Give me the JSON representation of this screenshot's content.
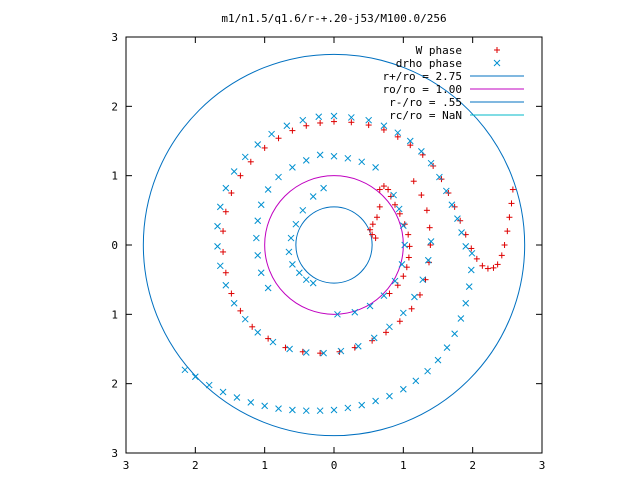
{
  "chart_data": {
    "type": "scatter",
    "title": "m1/n1.5/q1.6/r-+.20-j53/M100.0/256",
    "xlabel": "",
    "ylabel": "",
    "xlim": [
      -3,
      3
    ],
    "ylim": [
      -3,
      3
    ],
    "x_ticks": [
      -3,
      -2,
      -1,
      0,
      1,
      2,
      3
    ],
    "y_ticks": [
      -3,
      -2,
      -1,
      0,
      1,
      2,
      3
    ],
    "x_tick_labels": [
      "3",
      "2",
      "1",
      "0",
      "1",
      "2",
      "3"
    ],
    "y_tick_labels": [
      "3",
      "2",
      "1",
      "0",
      "1",
      "2",
      "3"
    ],
    "legend": "top-right",
    "series": [
      {
        "name": "W phase",
        "marker": "plus",
        "color": "#dd0000",
        "points": [
          [
            0.6,
            0.1
          ],
          [
            0.55,
            0.15
          ],
          [
            0.52,
            0.22
          ],
          [
            0.56,
            0.3
          ],
          [
            0.62,
            0.4
          ],
          [
            0.66,
            0.55
          ],
          [
            0.8,
            -0.7
          ],
          [
            0.92,
            -0.58
          ],
          [
            1.0,
            -0.45
          ],
          [
            1.05,
            -0.32
          ],
          [
            1.08,
            -0.18
          ],
          [
            1.09,
            -0.02
          ],
          [
            1.07,
            0.15
          ],
          [
            1.02,
            0.3
          ],
          [
            0.95,
            0.45
          ],
          [
            0.88,
            0.58
          ],
          [
            0.82,
            0.7
          ],
          [
            0.78,
            0.8
          ],
          [
            0.72,
            0.85
          ],
          [
            0.66,
            0.8
          ],
          [
            0.0,
            1.78
          ],
          [
            0.25,
            1.77
          ],
          [
            0.5,
            1.73
          ],
          [
            0.72,
            1.66
          ],
          [
            0.92,
            1.56
          ],
          [
            1.1,
            1.44
          ],
          [
            1.28,
            1.3
          ],
          [
            1.43,
            1.14
          ],
          [
            1.55,
            0.95
          ],
          [
            1.65,
            0.75
          ],
          [
            1.74,
            0.55
          ],
          [
            1.82,
            0.35
          ],
          [
            1.9,
            0.15
          ],
          [
            1.98,
            -0.05
          ],
          [
            2.06,
            -0.2
          ],
          [
            2.14,
            -0.3
          ],
          [
            2.22,
            -0.34
          ],
          [
            2.3,
            -0.33
          ],
          [
            2.36,
            -0.28
          ],
          [
            2.42,
            -0.15
          ],
          [
            2.46,
            0.0
          ],
          [
            2.5,
            0.2
          ],
          [
            2.53,
            0.4
          ],
          [
            2.56,
            0.6
          ],
          [
            2.58,
            0.8
          ],
          [
            -0.2,
            1.76
          ],
          [
            -0.4,
            1.72
          ],
          [
            -0.6,
            1.65
          ],
          [
            -0.8,
            1.54
          ],
          [
            -1.0,
            1.4
          ],
          [
            -1.2,
            1.2
          ],
          [
            -1.35,
            1.0
          ],
          [
            -1.48,
            0.75
          ],
          [
            -1.56,
            0.48
          ],
          [
            -1.6,
            0.2
          ],
          [
            -1.6,
            -0.1
          ],
          [
            -1.56,
            -0.4
          ],
          [
            -1.48,
            -0.7
          ],
          [
            -1.35,
            -0.95
          ],
          [
            -1.18,
            -1.18
          ],
          [
            -0.95,
            -1.35
          ],
          [
            -0.7,
            -1.48
          ],
          [
            -0.45,
            -1.54
          ],
          [
            -0.2,
            -1.56
          ],
          [
            0.08,
            -1.54
          ],
          [
            0.3,
            -1.48
          ],
          [
            0.55,
            -1.38
          ],
          [
            0.75,
            -1.26
          ],
          [
            0.95,
            -1.1
          ],
          [
            1.12,
            -0.92
          ],
          [
            1.24,
            -0.72
          ],
          [
            1.32,
            -0.5
          ],
          [
            1.37,
            -0.25
          ],
          [
            1.39,
            0.0
          ],
          [
            1.38,
            0.25
          ],
          [
            1.34,
            0.5
          ],
          [
            1.26,
            0.72
          ],
          [
            1.15,
            0.92
          ]
        ]
      },
      {
        "name": "drho phase",
        "marker": "x",
        "color": "#0090d0",
        "points": [
          [
            -0.3,
            -0.55
          ],
          [
            -0.4,
            -0.5
          ],
          [
            -0.5,
            -0.4
          ],
          [
            -0.6,
            -0.28
          ],
          [
            -0.65,
            -0.1
          ],
          [
            -0.62,
            0.1
          ],
          [
            -0.55,
            0.3
          ],
          [
            -0.45,
            0.5
          ],
          [
            -0.3,
            0.7
          ],
          [
            -0.15,
            0.82
          ],
          [
            0.05,
            -1.0
          ],
          [
            0.3,
            -0.97
          ],
          [
            0.52,
            -0.88
          ],
          [
            0.72,
            -0.73
          ],
          [
            0.88,
            -0.52
          ],
          [
            0.98,
            -0.28
          ],
          [
            1.02,
            0.0
          ],
          [
            1.0,
            0.28
          ],
          [
            0.94,
            0.52
          ],
          [
            0.86,
            0.72
          ],
          [
            0.0,
            1.86
          ],
          [
            0.25,
            1.84
          ],
          [
            0.5,
            1.8
          ],
          [
            0.72,
            1.72
          ],
          [
            0.92,
            1.62
          ],
          [
            1.1,
            1.5
          ],
          [
            1.26,
            1.35
          ],
          [
            1.4,
            1.18
          ],
          [
            1.52,
            0.98
          ],
          [
            1.62,
            0.78
          ],
          [
            1.7,
            0.58
          ],
          [
            1.78,
            0.38
          ],
          [
            1.84,
            0.18
          ],
          [
            1.9,
            -0.02
          ],
          [
            -0.22,
            1.85
          ],
          [
            -0.45,
            1.8
          ],
          [
            -0.68,
            1.72
          ],
          [
            -0.9,
            1.6
          ],
          [
            -1.1,
            1.45
          ],
          [
            -1.28,
            1.27
          ],
          [
            -1.44,
            1.06
          ],
          [
            -1.56,
            0.82
          ],
          [
            -1.64,
            0.55
          ],
          [
            -1.68,
            0.27
          ],
          [
            -1.68,
            -0.02
          ],
          [
            -1.64,
            -0.3
          ],
          [
            -1.56,
            -0.58
          ],
          [
            -1.44,
            -0.84
          ],
          [
            -1.28,
            -1.07
          ],
          [
            -1.1,
            -1.26
          ],
          [
            -0.88,
            -1.4
          ],
          [
            -0.64,
            -1.5
          ],
          [
            -0.4,
            -1.55
          ],
          [
            -0.15,
            -1.56
          ],
          [
            0.1,
            -1.53
          ],
          [
            0.35,
            -1.46
          ],
          [
            0.58,
            -1.34
          ],
          [
            0.8,
            -1.18
          ],
          [
            1.0,
            -0.98
          ],
          [
            1.16,
            -0.75
          ],
          [
            1.28,
            -0.5
          ],
          [
            1.36,
            -0.22
          ],
          [
            1.4,
            0.05
          ],
          [
            -2.15,
            -1.8
          ],
          [
            -2.0,
            -1.9
          ],
          [
            -1.8,
            -2.02
          ],
          [
            -1.6,
            -2.12
          ],
          [
            -1.4,
            -2.2
          ],
          [
            -1.2,
            -2.27
          ],
          [
            -1.0,
            -2.32
          ],
          [
            -0.8,
            -2.36
          ],
          [
            -0.6,
            -2.38
          ],
          [
            -0.4,
            -2.39
          ],
          [
            -0.2,
            -2.39
          ],
          [
            0.0,
            -2.38
          ],
          [
            0.2,
            -2.35
          ],
          [
            0.4,
            -2.31
          ],
          [
            0.6,
            -2.25
          ],
          [
            0.8,
            -2.18
          ],
          [
            1.0,
            -2.08
          ],
          [
            1.18,
            -1.96
          ],
          [
            1.35,
            -1.82
          ],
          [
            1.5,
            -1.66
          ],
          [
            1.63,
            -1.48
          ],
          [
            1.74,
            -1.28
          ],
          [
            1.83,
            -1.06
          ],
          [
            1.9,
            -0.84
          ],
          [
            1.95,
            -0.6
          ],
          [
            1.98,
            -0.36
          ],
          [
            1.99,
            -0.12
          ],
          [
            -0.2,
            1.3
          ],
          [
            0.0,
            1.28
          ],
          [
            0.2,
            1.25
          ],
          [
            0.4,
            1.2
          ],
          [
            0.6,
            1.12
          ],
          [
            -0.4,
            1.22
          ],
          [
            -0.6,
            1.12
          ],
          [
            -0.8,
            0.98
          ],
          [
            -0.95,
            0.8
          ],
          [
            -1.05,
            0.58
          ],
          [
            -1.1,
            0.35
          ],
          [
            -1.12,
            0.1
          ],
          [
            -1.1,
            -0.15
          ],
          [
            -1.05,
            -0.4
          ],
          [
            -0.95,
            -0.62
          ]
        ]
      }
    ],
    "circles": [
      {
        "name": "r+/ro = 2.75",
        "radius": 2.75,
        "color": "#0070c0"
      },
      {
        "name": "ro/ro = 1.00",
        "radius": 1.0,
        "color": "#c000c0"
      },
      {
        "name": "r-/ro = .55",
        "radius": 0.55,
        "color": "#0070c0"
      },
      {
        "name": "rc/ro = NaN",
        "radius": null,
        "color": "#00b8c8"
      }
    ]
  }
}
